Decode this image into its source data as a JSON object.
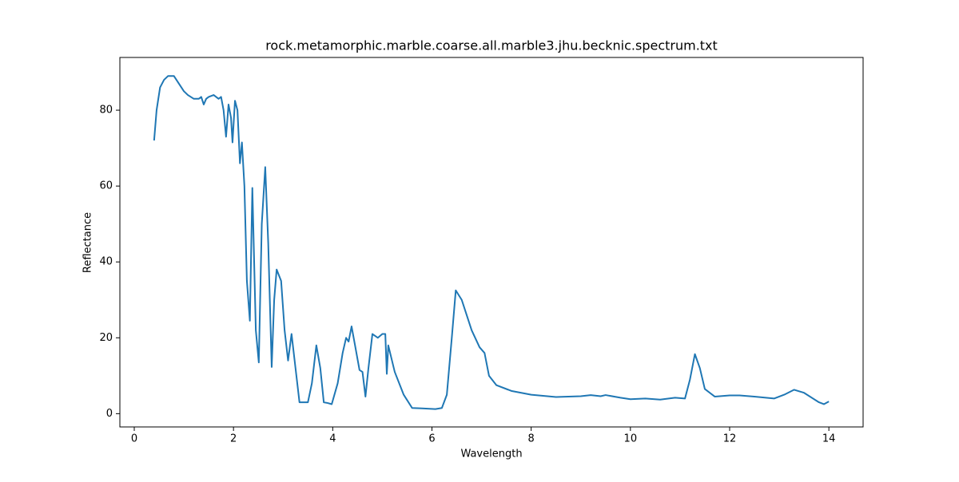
{
  "chart_data": {
    "type": "line",
    "title": "rock.metamorphic.marble.coarse.all.marble3.jhu.becknic.spectrum.txt",
    "x_label": "Wavelength",
    "y_label": "Reflectance",
    "xlim": [
      -0.29,
      14.69
    ],
    "ylim": [
      -3.5,
      93.9
    ],
    "xticks": [
      0,
      2,
      4,
      6,
      8,
      10,
      12,
      14
    ],
    "yticks": [
      0,
      20,
      40,
      60,
      80
    ],
    "series": [
      {
        "name": "spectrum",
        "color": "#1f77b4",
        "x": [
          0.4,
          0.45,
          0.52,
          0.6,
          0.68,
          0.8,
          0.9,
          1.0,
          1.08,
          1.2,
          1.3,
          1.35,
          1.4,
          1.45,
          1.5,
          1.6,
          1.7,
          1.75,
          1.8,
          1.85,
          1.9,
          1.95,
          1.98,
          2.03,
          2.08,
          2.13,
          2.17,
          2.22,
          2.27,
          2.33,
          2.38,
          2.45,
          2.51,
          2.57,
          2.64,
          2.7,
          2.77,
          2.82,
          2.87,
          2.96,
          3.03,
          3.1,
          3.17,
          3.25,
          3.33,
          3.42,
          3.5,
          3.58,
          3.67,
          3.75,
          3.82,
          3.9,
          3.98,
          4.1,
          4.2,
          4.27,
          4.32,
          4.38,
          4.45,
          4.54,
          4.6,
          4.66,
          4.72,
          4.8,
          4.91,
          5.0,
          5.06,
          5.09,
          5.12,
          5.25,
          5.43,
          5.6,
          5.8,
          6.07,
          6.2,
          6.3,
          6.4,
          6.48,
          6.6,
          6.8,
          6.96,
          7.06,
          7.15,
          7.3,
          7.6,
          8.0,
          8.5,
          9.0,
          9.2,
          9.4,
          9.5,
          9.8,
          10.0,
          10.3,
          10.6,
          10.9,
          11.1,
          11.2,
          11.3,
          11.4,
          11.5,
          11.7,
          12.0,
          12.2,
          12.5,
          12.9,
          13.1,
          13.3,
          13.5,
          13.8,
          13.9,
          14.0
        ],
        "values": [
          72,
          80,
          86,
          88,
          89,
          89,
          87,
          85,
          84,
          83,
          83,
          83.5,
          81.5,
          83,
          83.5,
          84,
          83,
          83.5,
          80,
          73,
          81.5,
          78,
          71.5,
          82.5,
          80,
          66,
          71.5,
          60,
          35,
          24.5,
          59.5,
          22,
          13.5,
          50,
          65,
          45,
          12.3,
          30,
          38,
          35,
          22,
          14,
          21,
          12,
          3,
          3,
          3,
          8,
          18,
          12,
          3,
          2.8,
          2.5,
          8,
          16,
          20,
          19,
          23,
          18,
          11.5,
          11,
          4.5,
          12,
          21,
          20,
          21,
          21,
          10.5,
          18,
          11,
          5,
          1.5,
          1.4,
          1.2,
          1.5,
          5,
          20,
          32.5,
          30,
          22,
          17.5,
          16,
          10,
          7.5,
          6,
          5,
          4.4,
          4.6,
          4.9,
          4.6,
          4.9,
          4.2,
          3.8,
          4.0,
          3.7,
          4.2,
          4.0,
          9,
          15.7,
          12,
          6.5,
          4.5,
          4.8,
          4.8,
          4.5,
          4.0,
          5,
          6.3,
          5.5,
          3,
          2.5,
          3.2
        ]
      }
    ]
  }
}
